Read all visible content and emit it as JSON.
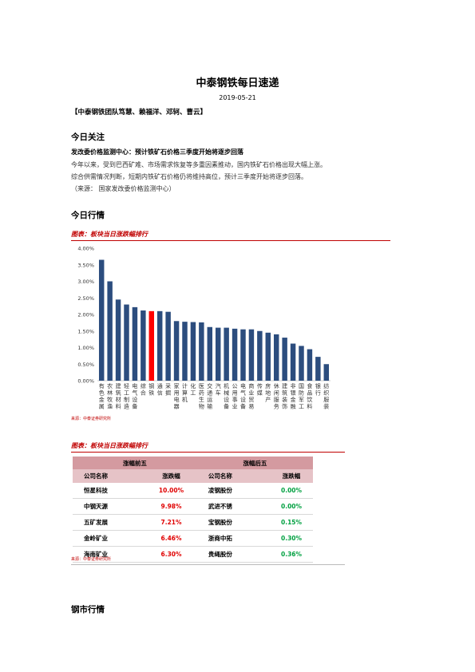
{
  "title": "中泰钢铁每日速递",
  "date": "2019-05-21",
  "team": "【中泰钢铁团队笃慧、赖福洋、邓轲、曹云】",
  "focus": {
    "heading": "今日关注",
    "headline": "发改委价格监测中心：预计铁矿石价格三季度开始将逐步回落",
    "lines": [
      "今年以来，受到巴西矿难、市场需求恢复等多重因素推动，国内铁矿石价格出现大幅上涨。",
      "综合供需情况判断，短期内铁矿石价格仍将维持高位，预计三季度开始将逐步回落。",
      "（来源： 国家发改委价格监测中心）"
    ]
  },
  "market": {
    "heading": "今日行情"
  },
  "figure1": {
    "caption": "图表：板块当日涨跌幅排行",
    "source": "来源：中泰证券研究所"
  },
  "figure2": {
    "caption": "图表：板块当日涨跌幅排行",
    "source": "来源：中泰证券研究所"
  },
  "chart_data": {
    "type": "bar",
    "categories": [
      "有色金属",
      "农林牧渔",
      "建筑材料",
      "轻工制造",
      "电气设备",
      "综合",
      "钢铁",
      "通信",
      "采掘",
      "家用电器",
      "计算机",
      "化工",
      "医药生物",
      "交通运输",
      "汽车",
      "机械设备",
      "公用事业",
      "电气设备",
      "商业贸易",
      "传媒",
      "房地产",
      "休闲服务",
      "建筑装饰",
      "非银金融",
      "国防军工",
      "食品饮料",
      "银行",
      "纺织服装"
    ],
    "labels": [
      "有\n色\n金\n属",
      "农\n林\n牧\n渔",
      "建\n筑\n材\n料",
      "轻\n工\n制\n造",
      "电\n气\n设\n备",
      "综\n合",
      "钢\n铁",
      "通\n信",
      "采\n掘",
      "家\n用\n电\n器",
      "计\n算\n机",
      "化\n工",
      "医\n药\n生\n物",
      "交\n通\n运\n输",
      "汽\n车",
      "机\n械\n设\n备",
      "公\n用\n事\n业",
      "电\n气\n设\n备",
      "商\n业\n贸\n易",
      "传\n媒",
      "房\n地\n产",
      "休\n闲\n服\n务",
      "建\n筑\n装\n饰",
      "非\n银\n金\n融",
      "国\n防\n军\n工",
      "食\n品\n饮\n料",
      "银\n行",
      "纺\n织\n服\n装"
    ],
    "values": [
      3.65,
      3.0,
      2.45,
      2.3,
      2.22,
      2.12,
      2.1,
      2.1,
      2.08,
      1.8,
      1.78,
      1.77,
      1.76,
      1.62,
      1.6,
      1.6,
      1.57,
      1.55,
      1.55,
      1.5,
      1.45,
      1.4,
      1.3,
      1.12,
      1.05,
      0.95,
      0.72,
      0.5
    ],
    "highlight_index": 6,
    "ylim": [
      0,
      4.0
    ],
    "yticks": [
      "0.00%",
      "0.50%",
      "1.00%",
      "1.50%",
      "2.00%",
      "2.50%",
      "3.00%",
      "3.50%",
      "4.00%"
    ],
    "colors": {
      "bar": "#2c4d7e",
      "highlight": "#ff0000"
    }
  },
  "table": {
    "group_top": "涨幅前五",
    "group_bottom": "涨幅后五",
    "col_company": "公司名称",
    "col_change": "涨跌幅",
    "rows": [
      {
        "top_name": "恒星科技",
        "top_pct": "10.00%",
        "bot_name": "凌钢股份",
        "bot_pct": "0.00%"
      },
      {
        "top_name": "中钢天源",
        "top_pct": "9.98%",
        "bot_name": "武进不锈",
        "bot_pct": "0.00%"
      },
      {
        "top_name": "五矿发展",
        "top_pct": "7.21%",
        "bot_name": "宝钢股份",
        "bot_pct": "0.15%"
      },
      {
        "top_name": "金岭矿业",
        "top_pct": "6.46%",
        "bot_name": "浙商中拓",
        "bot_pct": "0.30%"
      },
      {
        "top_name": "海南矿业",
        "top_pct": "6.30%",
        "bot_name": "贵绳股份",
        "bot_pct": "0.36%"
      }
    ]
  },
  "steel": {
    "heading": "钢市行情"
  }
}
